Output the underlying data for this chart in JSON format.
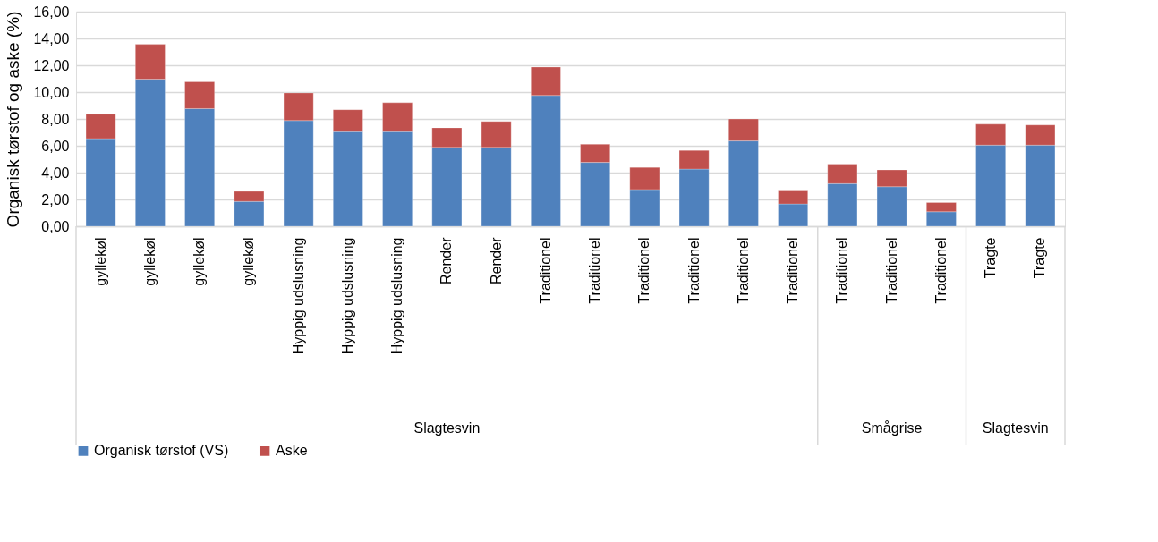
{
  "chart_data": {
    "type": "bar",
    "stacked": true,
    "ylabel": "Organisk tørstof og aske (%)",
    "categories": [
      "gyllekøl",
      "gyllekøl",
      "gyllekøl",
      "gyllekøl",
      "Hyppig udslusning",
      "Hyppig udslusning",
      "Hyppig udslusning",
      "Render",
      "Render",
      "Traditionel",
      "Traditionel",
      "Traditionel",
      "Traditionel",
      "Traditionel",
      "Traditionel",
      "Traditionel",
      "Traditionel",
      "Traditionel",
      "Tragte",
      "Tragte"
    ],
    "series": [
      {
        "name": "Organisk tørstof (VS)",
        "color": "#4f81bd",
        "values": [
          6.53,
          10.96,
          8.77,
          1.85,
          7.88,
          7.05,
          7.05,
          5.88,
          5.88,
          9.75,
          4.76,
          2.74,
          4.26,
          6.36,
          1.66,
          3.18,
          2.95,
          1.08,
          6.05,
          6.05
        ]
      },
      {
        "name": "Aske",
        "color": "#c0504d",
        "values": [
          1.83,
          2.6,
          2.0,
          0.75,
          2.06,
          1.64,
          2.16,
          1.46,
          1.94,
          2.12,
          1.35,
          1.65,
          1.39,
          1.64,
          1.04,
          1.46,
          1.25,
          0.69,
          1.56,
          1.5
        ]
      }
    ],
    "ylim": [
      0,
      16
    ],
    "yticks": [
      {
        "value": 0,
        "label": "0,00"
      },
      {
        "value": 2,
        "label": "2,00"
      },
      {
        "value": 4,
        "label": "4,00"
      },
      {
        "value": 6,
        "label": "6,00"
      },
      {
        "value": 8,
        "label": "8,00"
      },
      {
        "value": 10,
        "label": "10,00"
      },
      {
        "value": 12,
        "label": "12,00"
      },
      {
        "value": 14,
        "label": "14,00"
      },
      {
        "value": 16,
        "label": "16,00"
      }
    ],
    "grid": "y",
    "legend": "bottom",
    "annotations": [
      "Slagtesvin",
      "Smågrise",
      "Slagtesvin"
    ]
  }
}
